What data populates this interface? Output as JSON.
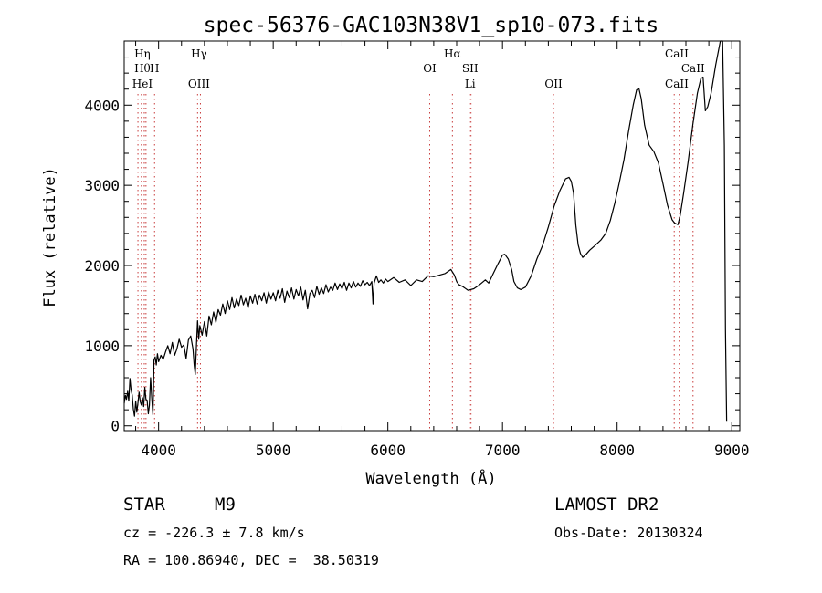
{
  "chart_data": {
    "type": "line",
    "title": "spec-56376-GAC103N38V1_sp10-073.fits",
    "xlabel": "Wavelength (Å)",
    "ylabel": "Flux (relative)",
    "xlim": [
      3700,
      9070
    ],
    "ylim": [
      -60,
      4800
    ],
    "x_ticks": [
      4000,
      5000,
      6000,
      7000,
      8000,
      9000
    ],
    "y_ticks": [
      0,
      1000,
      2000,
      3000,
      4000
    ],
    "grid": false,
    "series": [
      {
        "values": [
          [
            3700,
            280
          ],
          [
            3710,
            380
          ],
          [
            3720,
            330
          ],
          [
            3730,
            430
          ],
          [
            3740,
            310
          ],
          [
            3750,
            590
          ],
          [
            3760,
            450
          ],
          [
            3770,
            380
          ],
          [
            3780,
            210
          ],
          [
            3790,
            120
          ],
          [
            3800,
            310
          ],
          [
            3810,
            170
          ],
          [
            3820,
            290
          ],
          [
            3830,
            420
          ],
          [
            3840,
            300
          ],
          [
            3850,
            260
          ],
          [
            3860,
            350
          ],
          [
            3870,
            240
          ],
          [
            3880,
            480
          ],
          [
            3890,
            330
          ],
          [
            3900,
            320
          ],
          [
            3910,
            150
          ],
          [
            3920,
            260
          ],
          [
            3930,
            600
          ],
          [
            3940,
            360
          ],
          [
            3950,
            140
          ],
          [
            3955,
            420
          ],
          [
            3960,
            820
          ],
          [
            3970,
            860
          ],
          [
            3980,
            760
          ],
          [
            3990,
            900
          ],
          [
            4000,
            800
          ],
          [
            4020,
            880
          ],
          [
            4040,
            830
          ],
          [
            4060,
            920
          ],
          [
            4080,
            1000
          ],
          [
            4100,
            900
          ],
          [
            4120,
            1040
          ],
          [
            4140,
            880
          ],
          [
            4160,
            960
          ],
          [
            4180,
            1080
          ],
          [
            4200,
            980
          ],
          [
            4220,
            1010
          ],
          [
            4240,
            840
          ],
          [
            4260,
            1070
          ],
          [
            4280,
            1120
          ],
          [
            4300,
            960
          ],
          [
            4310,
            760
          ],
          [
            4320,
            640
          ],
          [
            4330,
            1000
          ],
          [
            4340,
            1310
          ],
          [
            4350,
            1080
          ],
          [
            4360,
            1250
          ],
          [
            4380,
            1130
          ],
          [
            4400,
            1300
          ],
          [
            4420,
            1120
          ],
          [
            4440,
            1370
          ],
          [
            4460,
            1260
          ],
          [
            4480,
            1420
          ],
          [
            4500,
            1290
          ],
          [
            4520,
            1450
          ],
          [
            4540,
            1380
          ],
          [
            4560,
            1520
          ],
          [
            4580,
            1400
          ],
          [
            4600,
            1560
          ],
          [
            4620,
            1450
          ],
          [
            4640,
            1600
          ],
          [
            4660,
            1470
          ],
          [
            4680,
            1580
          ],
          [
            4700,
            1500
          ],
          [
            4720,
            1630
          ],
          [
            4740,
            1510
          ],
          [
            4760,
            1590
          ],
          [
            4780,
            1470
          ],
          [
            4800,
            1620
          ],
          [
            4820,
            1530
          ],
          [
            4840,
            1640
          ],
          [
            4860,
            1520
          ],
          [
            4880,
            1630
          ],
          [
            4900,
            1560
          ],
          [
            4920,
            1660
          ],
          [
            4940,
            1530
          ],
          [
            4960,
            1670
          ],
          [
            4980,
            1580
          ],
          [
            5000,
            1660
          ],
          [
            5020,
            1560
          ],
          [
            5040,
            1690
          ],
          [
            5060,
            1590
          ],
          [
            5080,
            1710
          ],
          [
            5100,
            1540
          ],
          [
            5120,
            1680
          ],
          [
            5140,
            1600
          ],
          [
            5160,
            1720
          ],
          [
            5180,
            1580
          ],
          [
            5200,
            1700
          ],
          [
            5220,
            1620
          ],
          [
            5240,
            1730
          ],
          [
            5260,
            1570
          ],
          [
            5280,
            1690
          ],
          [
            5300,
            1460
          ],
          [
            5320,
            1650
          ],
          [
            5340,
            1690
          ],
          [
            5360,
            1600
          ],
          [
            5380,
            1740
          ],
          [
            5400,
            1640
          ],
          [
            5420,
            1720
          ],
          [
            5440,
            1650
          ],
          [
            5460,
            1760
          ],
          [
            5480,
            1670
          ],
          [
            5500,
            1730
          ],
          [
            5520,
            1690
          ],
          [
            5540,
            1780
          ],
          [
            5560,
            1700
          ],
          [
            5580,
            1770
          ],
          [
            5600,
            1710
          ],
          [
            5620,
            1790
          ],
          [
            5640,
            1690
          ],
          [
            5660,
            1780
          ],
          [
            5680,
            1720
          ],
          [
            5700,
            1800
          ],
          [
            5720,
            1730
          ],
          [
            5740,
            1780
          ],
          [
            5760,
            1740
          ],
          [
            5780,
            1810
          ],
          [
            5800,
            1760
          ],
          [
            5820,
            1790
          ],
          [
            5840,
            1750
          ],
          [
            5860,
            1800
          ],
          [
            5870,
            1520
          ],
          [
            5880,
            1780
          ],
          [
            5900,
            1870
          ],
          [
            5920,
            1790
          ],
          [
            5940,
            1820
          ],
          [
            5960,
            1780
          ],
          [
            5980,
            1830
          ],
          [
            6000,
            1800
          ],
          [
            6050,
            1850
          ],
          [
            6100,
            1790
          ],
          [
            6150,
            1820
          ],
          [
            6200,
            1750
          ],
          [
            6250,
            1820
          ],
          [
            6300,
            1800
          ],
          [
            6350,
            1870
          ],
          [
            6400,
            1860
          ],
          [
            6450,
            1880
          ],
          [
            6500,
            1900
          ],
          [
            6550,
            1950
          ],
          [
            6580,
            1880
          ],
          [
            6600,
            1800
          ],
          [
            6620,
            1760
          ],
          [
            6650,
            1740
          ],
          [
            6700,
            1690
          ],
          [
            6750,
            1710
          ],
          [
            6800,
            1760
          ],
          [
            6850,
            1820
          ],
          [
            6880,
            1780
          ],
          [
            6920,
            1900
          ],
          [
            6960,
            2020
          ],
          [
            7000,
            2130
          ],
          [
            7020,
            2140
          ],
          [
            7050,
            2080
          ],
          [
            7080,
            1950
          ],
          [
            7100,
            1800
          ],
          [
            7130,
            1720
          ],
          [
            7160,
            1700
          ],
          [
            7200,
            1730
          ],
          [
            7250,
            1870
          ],
          [
            7300,
            2080
          ],
          [
            7350,
            2250
          ],
          [
            7400,
            2480
          ],
          [
            7450,
            2740
          ],
          [
            7500,
            2930
          ],
          [
            7550,
            3080
          ],
          [
            7580,
            3100
          ],
          [
            7600,
            3050
          ],
          [
            7620,
            2900
          ],
          [
            7640,
            2500
          ],
          [
            7660,
            2260
          ],
          [
            7680,
            2150
          ],
          [
            7700,
            2100
          ],
          [
            7730,
            2140
          ],
          [
            7760,
            2190
          ],
          [
            7800,
            2240
          ],
          [
            7830,
            2280
          ],
          [
            7860,
            2320
          ],
          [
            7900,
            2400
          ],
          [
            7940,
            2560
          ],
          [
            7980,
            2780
          ],
          [
            8020,
            3040
          ],
          [
            8060,
            3320
          ],
          [
            8100,
            3680
          ],
          [
            8140,
            4000
          ],
          [
            8170,
            4190
          ],
          [
            8190,
            4210
          ],
          [
            8210,
            4080
          ],
          [
            8240,
            3750
          ],
          [
            8280,
            3500
          ],
          [
            8320,
            3420
          ],
          [
            8360,
            3280
          ],
          [
            8400,
            3020
          ],
          [
            8440,
            2750
          ],
          [
            8480,
            2570
          ],
          [
            8500,
            2530
          ],
          [
            8530,
            2510
          ],
          [
            8550,
            2620
          ],
          [
            8580,
            2900
          ],
          [
            8620,
            3300
          ],
          [
            8660,
            3750
          ],
          [
            8700,
            4150
          ],
          [
            8730,
            4330
          ],
          [
            8750,
            4350
          ],
          [
            8770,
            3930
          ],
          [
            8790,
            3980
          ],
          [
            8820,
            4150
          ],
          [
            8860,
            4500
          ],
          [
            8900,
            4800
          ],
          [
            8920,
            4800
          ],
          [
            8935,
            3500
          ],
          [
            8945,
            1200
          ],
          [
            8955,
            50
          ]
        ]
      }
    ],
    "lines": [
      {
        "labels": [
          {
            "text": "Hη",
            "row": 1
          },
          {
            "text": "Hθ",
            "row": 2
          },
          {
            "text": "HeI",
            "row": 3
          }
        ],
        "x": [
          3820,
          3850,
          3875,
          3890
        ]
      },
      {
        "labels": [
          {
            "text": "H",
            "row": 2
          }
        ],
        "x": [
          3965
        ]
      },
      {
        "labels": [
          {
            "text": "Hγ",
            "row": 1
          },
          {
            "text": "OIII",
            "row": 3
          }
        ],
        "x": [
          4340,
          4365
        ]
      },
      {
        "labels": [
          {
            "text": "OI",
            "row": 2
          }
        ],
        "x": [
          6365
        ]
      },
      {
        "labels": [
          {
            "text": "Hα",
            "row": 1
          }
        ],
        "x": [
          6563
        ]
      },
      {
        "labels": [
          {
            "text": "SII",
            "row": 2
          },
          {
            "text": "Li",
            "row": 3
          }
        ],
        "x": [
          6710,
          6725
        ]
      },
      {
        "labels": [
          {
            "text": "OII",
            "row": 3
          }
        ],
        "x": [
          7445
        ]
      },
      {
        "labels": [
          {
            "text": "CaII",
            "row": 1
          },
          {
            "text": "CaII",
            "row": 3
          }
        ],
        "x": [
          8498,
          8542
        ]
      },
      {
        "labels": [
          {
            "text": "CaII",
            "row": 2
          }
        ],
        "x": [
          8662
        ]
      }
    ]
  },
  "info": {
    "object_class": "STAR",
    "subclass": "M9",
    "survey": "LAMOST DR2",
    "cz": "cz = -226.3 ± 7.8 km/s",
    "obs_date": "Obs-Date: 20130324",
    "coords": "RA = 100.86940, DEC =  38.50319"
  }
}
